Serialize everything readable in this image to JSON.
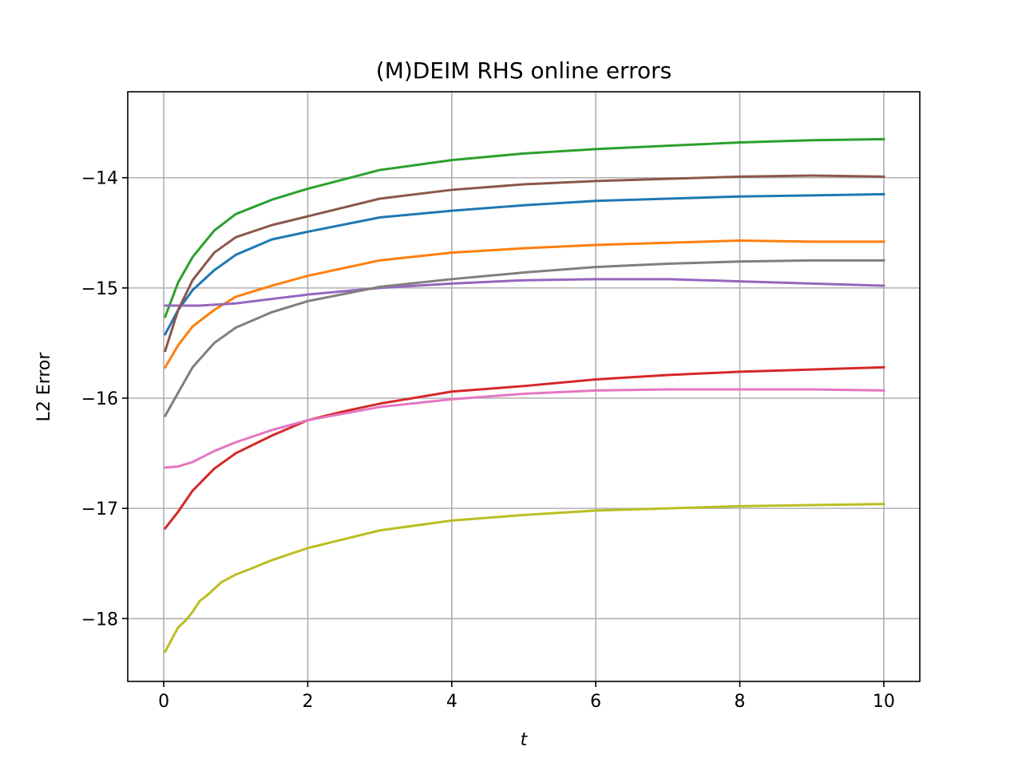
{
  "chart_data": {
    "type": "line",
    "title": "(M)DEIM RHS online errors",
    "xlabel": "t",
    "ylabel": "L2 Error",
    "xlim": [
      -0.5,
      10.5
    ],
    "ylim": [
      -18.57,
      -13.22
    ],
    "xticks": [
      0,
      2,
      4,
      6,
      8,
      10
    ],
    "yticks": [
      -18,
      -17,
      -16,
      -15,
      -14
    ],
    "xtick_labels": [
      "0",
      "2",
      "4",
      "6",
      "8",
      "10"
    ],
    "ytick_labels": [
      "−18",
      "−17",
      "−16",
      "−15",
      "−14"
    ],
    "grid": true,
    "legend": "none",
    "colors": {
      "grid": "#b0b0b0",
      "axes": "#000000",
      "background": "#ffffff"
    },
    "series": [
      {
        "color": "#1f77b4",
        "x": [
          0.02,
          0.2,
          0.4,
          0.7,
          1.0,
          1.5,
          2.0,
          3.0,
          4.0,
          5.0,
          6.0,
          7.0,
          8.0,
          9.0,
          10.0
        ],
        "y": [
          -15.42,
          -15.2,
          -15.02,
          -14.84,
          -14.7,
          -14.56,
          -14.49,
          -14.36,
          -14.3,
          -14.25,
          -14.21,
          -14.19,
          -14.17,
          -14.16,
          -14.15
        ]
      },
      {
        "color": "#ff7f0e",
        "x": [
          0.02,
          0.2,
          0.4,
          0.7,
          1.0,
          1.5,
          2.0,
          3.0,
          4.0,
          5.0,
          6.0,
          7.0,
          8.0,
          9.0,
          10.0
        ],
        "y": [
          -15.72,
          -15.52,
          -15.35,
          -15.2,
          -15.08,
          -14.98,
          -14.89,
          -14.75,
          -14.68,
          -14.64,
          -14.61,
          -14.59,
          -14.57,
          -14.58,
          -14.58
        ]
      },
      {
        "color": "#2ca02c",
        "x": [
          0.02,
          0.2,
          0.4,
          0.7,
          1.0,
          1.5,
          2.0,
          3.0,
          4.0,
          5.0,
          6.0,
          7.0,
          8.0,
          9.0,
          10.0
        ],
        "y": [
          -15.26,
          -14.95,
          -14.72,
          -14.48,
          -14.33,
          -14.2,
          -14.1,
          -13.93,
          -13.84,
          -13.78,
          -13.74,
          -13.71,
          -13.68,
          -13.66,
          -13.65
        ]
      },
      {
        "color": "#d62728",
        "x": [
          0.02,
          0.2,
          0.4,
          0.7,
          1.0,
          1.5,
          2.0,
          2.5,
          3.0,
          4.0,
          5.0,
          6.0,
          7.0,
          8.0,
          9.0,
          10.0
        ],
        "y": [
          -17.18,
          -17.03,
          -16.84,
          -16.64,
          -16.5,
          -16.34,
          -16.2,
          -16.12,
          -16.05,
          -15.94,
          -15.89,
          -15.83,
          -15.79,
          -15.76,
          -15.74,
          -15.72
        ]
      },
      {
        "color": "#9467bd",
        "x": [
          0.02,
          0.5,
          1.0,
          1.5,
          2.0,
          3.0,
          4.0,
          5.0,
          6.0,
          7.0,
          8.0,
          9.0,
          10.0
        ],
        "y": [
          -15.16,
          -15.16,
          -15.14,
          -15.1,
          -15.06,
          -15.0,
          -14.96,
          -14.93,
          -14.92,
          -14.92,
          -14.94,
          -14.96,
          -14.98
        ]
      },
      {
        "color": "#8c564b",
        "x": [
          0.02,
          0.2,
          0.4,
          0.7,
          1.0,
          1.5,
          2.0,
          3.0,
          4.0,
          5.0,
          6.0,
          7.0,
          8.0,
          9.0,
          10.0
        ],
        "y": [
          -15.57,
          -15.2,
          -14.93,
          -14.68,
          -14.54,
          -14.43,
          -14.35,
          -14.19,
          -14.11,
          -14.06,
          -14.03,
          -14.01,
          -13.99,
          -13.98,
          -13.99
        ]
      },
      {
        "color": "#e377c2",
        "x": [
          0.02,
          0.2,
          0.4,
          0.7,
          1.0,
          1.5,
          2.0,
          3.0,
          4.0,
          5.0,
          6.0,
          7.0,
          8.0,
          9.0,
          10.0
        ],
        "y": [
          -16.63,
          -16.62,
          -16.58,
          -16.48,
          -16.4,
          -16.29,
          -16.2,
          -16.08,
          -16.01,
          -15.96,
          -15.93,
          -15.92,
          -15.92,
          -15.92,
          -15.93
        ]
      },
      {
        "color": "#7f7f7f",
        "x": [
          0.02,
          0.2,
          0.4,
          0.7,
          1.0,
          1.5,
          2.0,
          3.0,
          4.0,
          5.0,
          6.0,
          7.0,
          8.0,
          9.0,
          10.0
        ],
        "y": [
          -16.16,
          -15.95,
          -15.72,
          -15.5,
          -15.36,
          -15.22,
          -15.12,
          -14.99,
          -14.92,
          -14.86,
          -14.81,
          -14.78,
          -14.76,
          -14.75,
          -14.75
        ]
      },
      {
        "color": "#bcbd22",
        "x": [
          0.02,
          0.1,
          0.2,
          0.3,
          0.4,
          0.5,
          0.6,
          0.7,
          0.8,
          1.0,
          1.2,
          1.5,
          2.0,
          2.5,
          3.0,
          4.0,
          5.0,
          6.0,
          7.0,
          8.0,
          9.0,
          10.0
        ],
        "y": [
          -18.3,
          -18.2,
          -18.08,
          -18.02,
          -17.94,
          -17.84,
          -17.79,
          -17.73,
          -17.67,
          -17.6,
          -17.55,
          -17.47,
          -17.36,
          -17.28,
          -17.2,
          -17.11,
          -17.06,
          -17.02,
          -17.0,
          -16.98,
          -16.97,
          -16.96
        ]
      }
    ]
  }
}
